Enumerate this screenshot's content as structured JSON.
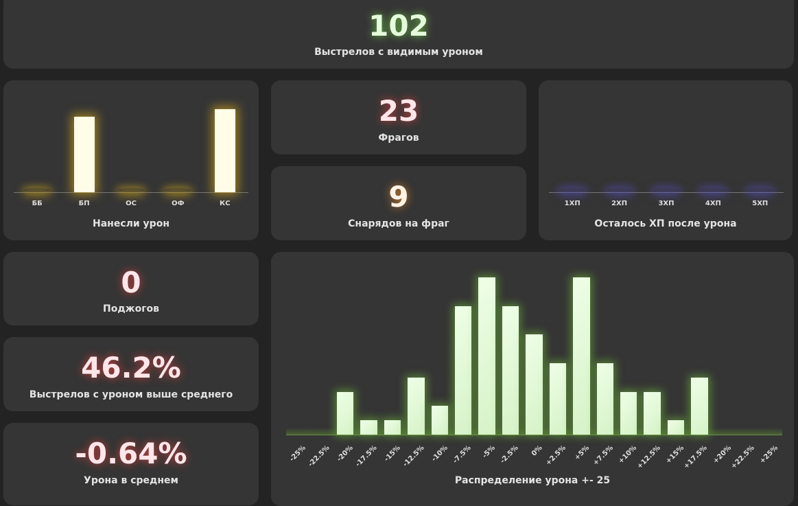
{
  "shots_visible": {
    "value": "102",
    "label": "Выстрелов с видимым уроном"
  },
  "damage_by_shell": {
    "label": "Нанесли урон"
  },
  "frags": {
    "value": "23",
    "label": "Фрагов"
  },
  "shells_per_frag": {
    "value": "9",
    "label": "Снарядов на фраг"
  },
  "hp_left": {
    "label": "Осталось ХП после урона"
  },
  "fires": {
    "value": "0",
    "label": "Поджогов"
  },
  "above_avg": {
    "value": "46.2%",
    "label": "Выстрелов с уроном выше среднего"
  },
  "avg_damage": {
    "value": "-0.64%",
    "label": "Урона в среднем"
  },
  "distribution": {
    "label": "Распределение урона +- 25"
  },
  "colors": {
    "card": "#353535",
    "bg": "#232323",
    "green": "#e6fbdc",
    "yellow": "#fffde8",
    "pink": "#ffe6ea"
  },
  "chart_data": [
    {
      "type": "bar",
      "title": "Нанесли урон",
      "categories": [
        "ББ",
        "БП",
        "ОС",
        "ОФ",
        "КС"
      ],
      "values": [
        0,
        47,
        0,
        0,
        52
      ]
    },
    {
      "type": "bar",
      "title": "Осталось ХП после урона",
      "categories": [
        "1ХП",
        "2ХП",
        "3ХП",
        "4ХП",
        "5ХП"
      ],
      "values": [
        0,
        0,
        0,
        0,
        0
      ]
    },
    {
      "type": "bar",
      "title": "Распределение урона +- 25",
      "categories": [
        "-25%",
        "-22.5%",
        "-20%",
        "-17.5%",
        "-15%",
        "-12.5%",
        "-10%",
        "-7.5%",
        "-5%",
        "-2.5%",
        "0%",
        "+2.5%",
        "+5%",
        "+7.5%",
        "+10%",
        "+12.5%",
        "+15%",
        "+17.5%",
        "+20%",
        "+22.5%",
        "+25%"
      ],
      "values": [
        0,
        0,
        3,
        1,
        1,
        4,
        2,
        9,
        11,
        9,
        7,
        5,
        11,
        5,
        3,
        3,
        1,
        4,
        0,
        0,
        0
      ]
    }
  ]
}
